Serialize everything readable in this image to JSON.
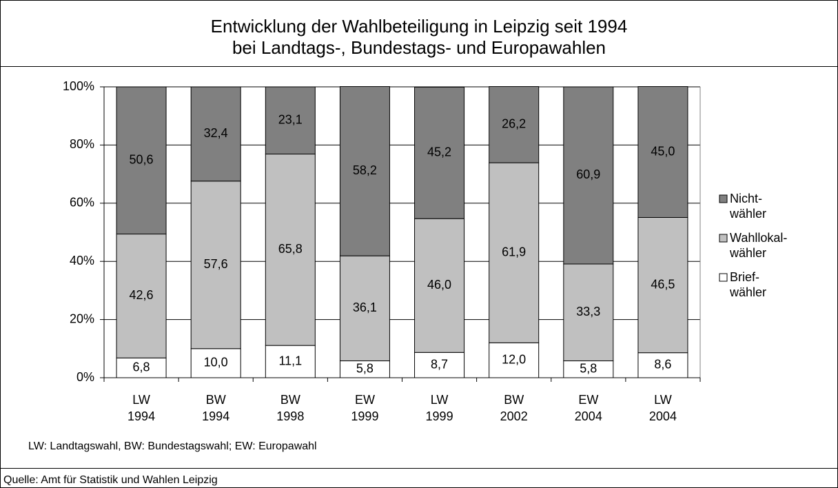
{
  "chart_data": {
    "type": "stacked_bar",
    "title": "Entwicklung der Wahlbeteiligung in Leipzig seit 1994\nbei Landtags-, Bundestags- und Europawahlen",
    "categories": [
      "LW\n1994",
      "BW\n1994",
      "BW\n1998",
      "EW\n1999",
      "LW\n1999",
      "BW\n2002",
      "EW\n2004",
      "LW\n2004"
    ],
    "series": [
      {
        "name": "Brief-\nwähler",
        "color": "#ffffff",
        "values": [
          6.8,
          10.0,
          11.1,
          5.8,
          8.7,
          12.0,
          5.8,
          8.6
        ],
        "value_labels": [
          "6,8",
          "10,0",
          "11,1",
          "5,8",
          "8,7",
          "12,0",
          "5,8",
          "8,6"
        ]
      },
      {
        "name": "Wahllokal-\nwähler",
        "color": "#c0c0c0",
        "values": [
          42.6,
          57.6,
          65.8,
          36.1,
          46.0,
          61.9,
          33.3,
          46.5
        ],
        "value_labels": [
          "42,6",
          "57,6",
          "65,8",
          "36,1",
          "46,0",
          "61,9",
          "33,3",
          "46,5"
        ]
      },
      {
        "name": "Nicht-\nwähler",
        "color": "#808080",
        "values": [
          50.6,
          32.4,
          23.1,
          58.2,
          45.2,
          26.2,
          60.9,
          45.0
        ],
        "value_labels": [
          "50,6",
          "32,4",
          "23,1",
          "58,2",
          "45,2",
          "26,2",
          "60,9",
          "45,0"
        ]
      }
    ],
    "ylim": [
      0,
      100
    ],
    "yticks": [
      {
        "value": 0,
        "label": "0%"
      },
      {
        "value": 20,
        "label": "20%"
      },
      {
        "value": 40,
        "label": "40%"
      },
      {
        "value": 60,
        "label": "60%"
      },
      {
        "value": 80,
        "label": "80%"
      },
      {
        "value": 100,
        "label": "100%"
      }
    ],
    "grid": true,
    "legend": "right",
    "note": "LW: Landtagswahl, BW: Bundestagswahl; EW: Europawahl",
    "source": "Quelle: Amt für Statistik und Wahlen Leipzig"
  }
}
